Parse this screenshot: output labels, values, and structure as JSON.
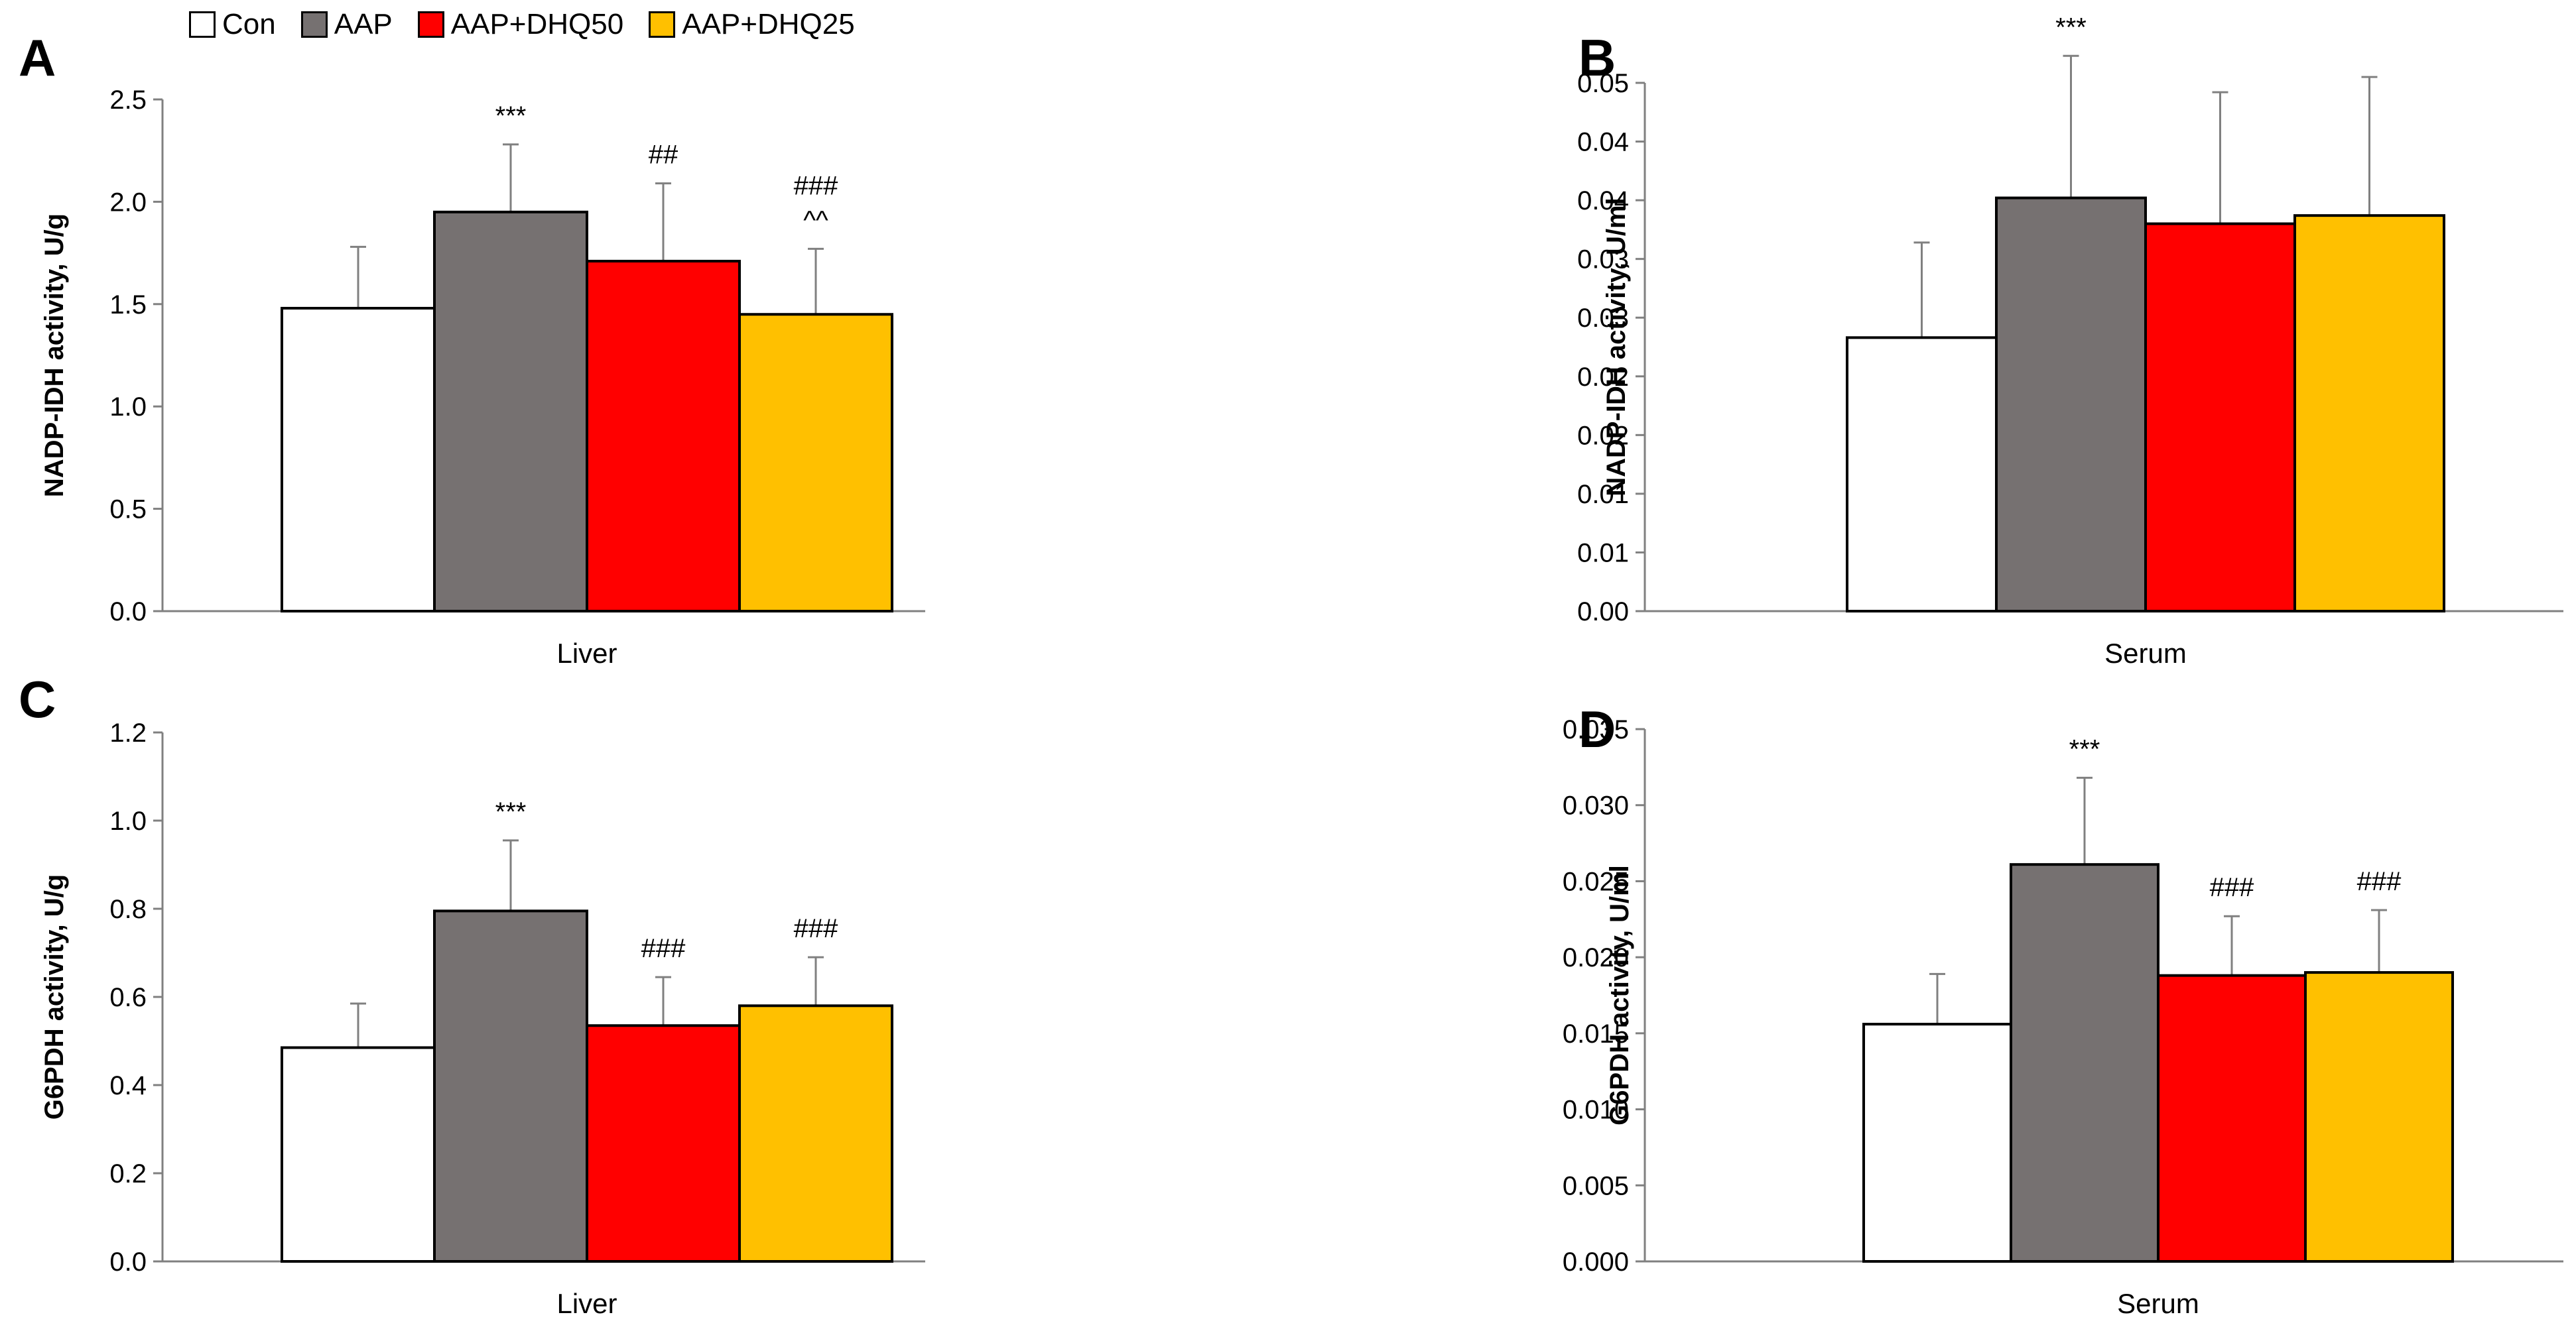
{
  "legend": [
    {
      "label": "Con",
      "color": "#ffffff"
    },
    {
      "label": "AAP",
      "color": "#767171"
    },
    {
      "label": "AAP+DHQ50",
      "color": "#ff0000"
    },
    {
      "label": "AAP+DHQ25",
      "color": "#ffc000"
    }
  ],
  "panels": {
    "A": {
      "letter": "A",
      "ylabel": "NADP-IDH activity, U/g",
      "xlabel": "Liver"
    },
    "B": {
      "letter": "B",
      "ylabel": "NADP-IDH activity, U/ml",
      "xlabel": "Serum"
    },
    "C": {
      "letter": "C",
      "ylabel": "G6PDH activity, U/g",
      "xlabel": "Liver"
    },
    "D": {
      "letter": "D",
      "ylabel": "G6PDH activity, U/ml",
      "xlabel": "Serum"
    }
  },
  "chart_data": [
    {
      "panel": "A",
      "type": "bar",
      "category": "Liver",
      "ylabel": "NADP-IDH activity, U/g",
      "xlabel": "Liver",
      "ylim": [
        0,
        2.5
      ],
      "ticks": [
        "0.0",
        "0.5",
        "1.0",
        "1.5",
        "2.0",
        "2.5"
      ],
      "series": [
        {
          "name": "Con",
          "value": 1.48,
          "error": 0.3,
          "annotation": ""
        },
        {
          "name": "AAP",
          "value": 1.95,
          "error": 0.33,
          "annotation": "***"
        },
        {
          "name": "AAP+DHQ50",
          "value": 1.71,
          "error": 0.38,
          "annotation": "##"
        },
        {
          "name": "AAP+DHQ25",
          "value": 1.45,
          "error": 0.32,
          "annotation": "###\n^^"
        }
      ]
    },
    {
      "panel": "B",
      "type": "bar",
      "category": "Serum",
      "ylabel": "NADP-IDH activity, U/ml",
      "xlabel": "Serum",
      "ylim": [
        0,
        0.045
      ],
      "ticks": [
        "0.00",
        "0.01",
        "0.01",
        "0.02",
        "0.02",
        "0.03",
        "0.03",
        "0.04",
        "0.04",
        "0.05"
      ],
      "series": [
        {
          "name": "Con",
          "value": 0.0233,
          "error": 0.0081,
          "annotation": ""
        },
        {
          "name": "AAP",
          "value": 0.0352,
          "error": 0.0121,
          "annotation": "***"
        },
        {
          "name": "AAP+DHQ50",
          "value": 0.033,
          "error": 0.0112,
          "annotation": ""
        },
        {
          "name": "AAP+DHQ25",
          "value": 0.0337,
          "error": 0.0118,
          "annotation": ""
        }
      ]
    },
    {
      "panel": "C",
      "type": "bar",
      "category": "Liver",
      "ylabel": "G6PDH activity, U/g",
      "xlabel": "Liver",
      "ylim": [
        0,
        1.2
      ],
      "ticks": [
        "0.0",
        "0.2",
        "0.4",
        "0.6",
        "0.8",
        "1.0",
        "1.2"
      ],
      "series": [
        {
          "name": "Con",
          "value": 0.485,
          "error": 0.1,
          "annotation": ""
        },
        {
          "name": "AAP",
          "value": 0.795,
          "error": 0.16,
          "annotation": "***"
        },
        {
          "name": "AAP+DHQ50",
          "value": 0.535,
          "error": 0.11,
          "annotation": "###"
        },
        {
          "name": "AAP+DHQ25",
          "value": 0.58,
          "error": 0.11,
          "annotation": "###"
        }
      ]
    },
    {
      "panel": "D",
      "type": "bar",
      "category": "Serum",
      "ylabel": "G6PDH activity, U/ml",
      "xlabel": "Serum",
      "ylim": [
        0,
        0.035
      ],
      "ticks": [
        "0.000",
        "0.005",
        "0.010",
        "0.015",
        "0.020",
        "0.025",
        "0.030",
        "0.035"
      ],
      "series": [
        {
          "name": "Con",
          "value": 0.0156,
          "error": 0.0033,
          "annotation": ""
        },
        {
          "name": "AAP",
          "value": 0.0261,
          "error": 0.0057,
          "annotation": "***"
        },
        {
          "name": "AAP+DHQ50",
          "value": 0.0188,
          "error": 0.0039,
          "annotation": "###"
        },
        {
          "name": "AAP+DHQ25",
          "value": 0.019,
          "error": 0.0041,
          "annotation": "###"
        }
      ]
    }
  ]
}
